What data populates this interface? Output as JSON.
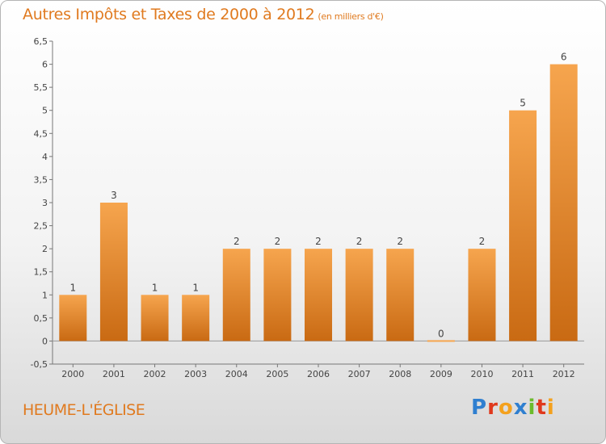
{
  "header": {
    "title": "Autres Impôts et Taxes de 2000 à 2012",
    "unit": "(en milliers d'€)"
  },
  "footer": {
    "place": "HEUME-L'ÉGLISE",
    "logo_letters": [
      {
        "char": "P",
        "color": "#2f7fd0"
      },
      {
        "char": "r",
        "color": "#e0391d"
      },
      {
        "char": "o",
        "color": "#f4a11d"
      },
      {
        "char": "x",
        "color": "#2f7fd0"
      },
      {
        "char": "i",
        "color": "#6cbb2c"
      },
      {
        "char": "t",
        "color": "#e0391d"
      },
      {
        "char": "i",
        "color": "#f4a11d"
      }
    ]
  },
  "colors": {
    "bar_light": "#f6a54e",
    "bar_dark": "#c96a13",
    "accent_text": "#e07a1f"
  },
  "chart_data": {
    "type": "bar",
    "categories": [
      "2000",
      "2001",
      "2002",
      "2003",
      "2004",
      "2005",
      "2006",
      "2007",
      "2008",
      "2009",
      "2010",
      "2011",
      "2012"
    ],
    "values": [
      1,
      3,
      1,
      1,
      2,
      2,
      2,
      2,
      2,
      0,
      2,
      5,
      6
    ],
    "value_labels": [
      "1",
      "3",
      "1",
      "1",
      "2",
      "2",
      "2",
      "2",
      "2",
      "0",
      "2",
      "5",
      "6"
    ],
    "title": "Autres Impôts et Taxes de 2000 à 2012",
    "xlabel": "",
    "ylabel": "",
    "ylim": [
      -0.5,
      6.5
    ],
    "yticks": [
      -0.5,
      0,
      0.5,
      1,
      1.5,
      2,
      2.5,
      3,
      3.5,
      4,
      4.5,
      5,
      5.5,
      6,
      6.5
    ],
    "ytick_labels": [
      "-0,5",
      "0",
      "0,5",
      "1",
      "1,5",
      "2",
      "2,5",
      "3",
      "3,5",
      "4",
      "4,5",
      "5",
      "5,5",
      "6",
      "6,5"
    ],
    "grid": false,
    "legend": "none"
  }
}
